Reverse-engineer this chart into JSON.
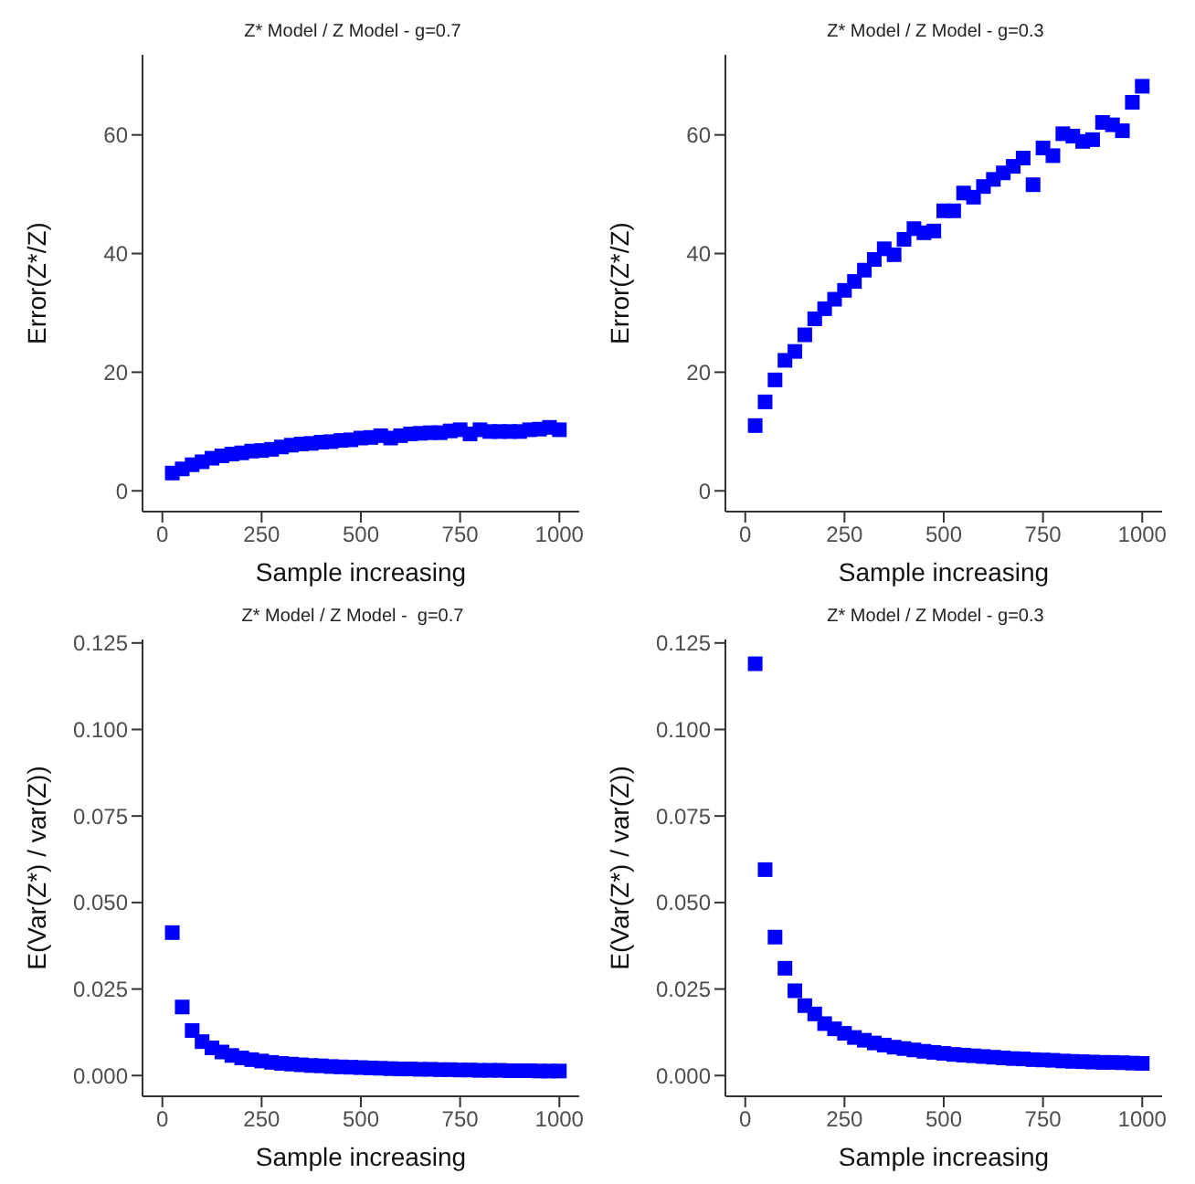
{
  "chart_data": [
    {
      "type": "scatter",
      "title": "Z* Model / Z Model - g=0.7",
      "xlabel": "Sample increasing",
      "ylabel": "Error(Z*/Z)",
      "marker": "square",
      "color": "#0000ff",
      "x": [
        25,
        50,
        75,
        100,
        125,
        150,
        175,
        200,
        225,
        250,
        275,
        300,
        325,
        350,
        375,
        400,
        425,
        450,
        475,
        500,
        525,
        550,
        575,
        600,
        625,
        650,
        675,
        700,
        725,
        750,
        775,
        800,
        825,
        850,
        875,
        900,
        925,
        950,
        975,
        1000
      ],
      "values": [
        3,
        3.7,
        4.4,
        4.9,
        5.5,
        5.9,
        6.2,
        6.4,
        6.7,
        6.8,
        7,
        7.4,
        7.7,
        7.9,
        8,
        8.2,
        8.3,
        8.5,
        8.6,
        8.9,
        9,
        9.3,
        8.9,
        9.3,
        9.6,
        9.7,
        9.8,
        9.8,
        10.1,
        10.3,
        9.6,
        10.3,
        10,
        10,
        10,
        10,
        10.3,
        10.4,
        10.7,
        10.3
      ],
      "xlim": [
        -50,
        1050
      ],
      "xticks": [
        0,
        250,
        500,
        750,
        1000
      ],
      "ylim": [
        -3.5,
        73.5
      ],
      "yticks": [
        0,
        20,
        40,
        60
      ]
    },
    {
      "type": "scatter",
      "title": "Z* Model / Z Model - g=0.3",
      "xlabel": "Sample increasing",
      "ylabel": "Error(Z*/Z)",
      "marker": "square",
      "color": "#0000ff",
      "x": [
        25,
        50,
        75,
        100,
        125,
        150,
        175,
        200,
        225,
        250,
        275,
        300,
        325,
        350,
        375,
        400,
        425,
        450,
        475,
        500,
        525,
        550,
        575,
        600,
        625,
        650,
        675,
        700,
        725,
        750,
        775,
        800,
        825,
        850,
        875,
        900,
        925,
        950,
        975,
        1000
      ],
      "values": [
        11,
        15,
        18.7,
        22,
        23.5,
        26.3,
        29,
        30.7,
        32.3,
        33.8,
        35.3,
        37.2,
        39,
        40.8,
        39.8,
        42.4,
        44.2,
        43.5,
        43.8,
        47.2,
        47.2,
        50.2,
        49.5,
        51.3,
        52.5,
        53.6,
        54.7,
        56.1,
        51.6,
        57.8,
        56.5,
        60.2,
        59.8,
        58.9,
        59.2,
        62.1,
        61.7,
        60.7,
        65.5,
        68.2
      ],
      "xlim": [
        -50,
        1050
      ],
      "xticks": [
        0,
        250,
        500,
        750,
        1000
      ],
      "ylim": [
        -3.5,
        73.5
      ],
      "yticks": [
        0,
        20,
        40,
        60
      ]
    },
    {
      "type": "scatter",
      "title": "Z* Model / Z Model -  g=0.7",
      "xlabel": "Sample increasing",
      "ylabel": "E(Var(Z*) / var(Z))",
      "marker": "square",
      "color": "#0000ff",
      "x": [
        25,
        50,
        75,
        100,
        125,
        150,
        175,
        200,
        225,
        250,
        275,
        300,
        325,
        350,
        375,
        400,
        425,
        450,
        475,
        500,
        525,
        550,
        575,
        600,
        625,
        650,
        675,
        700,
        725,
        750,
        775,
        800,
        825,
        850,
        875,
        900,
        925,
        950,
        975,
        1000
      ],
      "values": [
        0.0413,
        0.0198,
        0.013,
        0.0098,
        0.008,
        0.0068,
        0.0058,
        0.0051,
        0.0046,
        0.0042,
        0.0038,
        0.0035,
        0.0033,
        0.0031,
        0.0029,
        0.0028,
        0.0026,
        0.0025,
        0.0024,
        0.0023,
        0.0022,
        0.0021,
        0.002,
        0.0019,
        0.0019,
        0.0018,
        0.0018,
        0.0017,
        0.0017,
        0.0016,
        0.0016,
        0.0015,
        0.0015,
        0.0015,
        0.0014,
        0.0014,
        0.0014,
        0.0013,
        0.0013,
        0.0013
      ],
      "xlim": [
        -50,
        1050
      ],
      "xticks": [
        0,
        250,
        500,
        750,
        1000
      ],
      "ylim": [
        -0.006,
        0.126
      ],
      "yticks": [
        {
          "value": 0,
          "label": "0.000"
        },
        {
          "value": 0.025,
          "label": "0.025"
        },
        {
          "value": 0.05,
          "label": "0.050"
        },
        {
          "value": 0.075,
          "label": "0.075"
        },
        {
          "value": 0.1,
          "label": "0.100"
        },
        {
          "value": 0.125,
          "label": "0.125"
        }
      ]
    },
    {
      "type": "scatter",
      "title": "Z* Model / Z Model - g=0.3",
      "xlabel": "Sample increasing",
      "ylabel": "E(Var(Z*) / var(Z))",
      "marker": "square",
      "color": "#0000ff",
      "x": [
        25,
        50,
        75,
        100,
        125,
        150,
        175,
        200,
        225,
        250,
        275,
        300,
        325,
        350,
        375,
        400,
        425,
        450,
        475,
        500,
        525,
        550,
        575,
        600,
        625,
        650,
        675,
        700,
        725,
        750,
        775,
        800,
        825,
        850,
        875,
        900,
        925,
        950,
        975,
        1000
      ],
      "values": [
        0.119,
        0.0595,
        0.04,
        0.031,
        0.0245,
        0.0202,
        0.0178,
        0.015,
        0.0135,
        0.0122,
        0.011,
        0.0102,
        0.0094,
        0.0088,
        0.0082,
        0.0078,
        0.0074,
        0.007,
        0.0067,
        0.0064,
        0.0061,
        0.0059,
        0.0057,
        0.0055,
        0.0053,
        0.0051,
        0.0049,
        0.0048,
        0.0046,
        0.0045,
        0.0044,
        0.0042,
        0.0041,
        0.004,
        0.0039,
        0.0038,
        0.0038,
        0.0037,
        0.0036,
        0.0035
      ],
      "xlim": [
        -50,
        1050
      ],
      "xticks": [
        0,
        250,
        500,
        750,
        1000
      ],
      "ylim": [
        -0.006,
        0.126
      ],
      "yticks": [
        {
          "value": 0,
          "label": "0.000"
        },
        {
          "value": 0.025,
          "label": "0.025"
        },
        {
          "value": 0.05,
          "label": "0.050"
        },
        {
          "value": 0.075,
          "label": "0.075"
        },
        {
          "value": 0.1,
          "label": "0.100"
        },
        {
          "value": 0.125,
          "label": "0.125"
        }
      ]
    }
  ]
}
